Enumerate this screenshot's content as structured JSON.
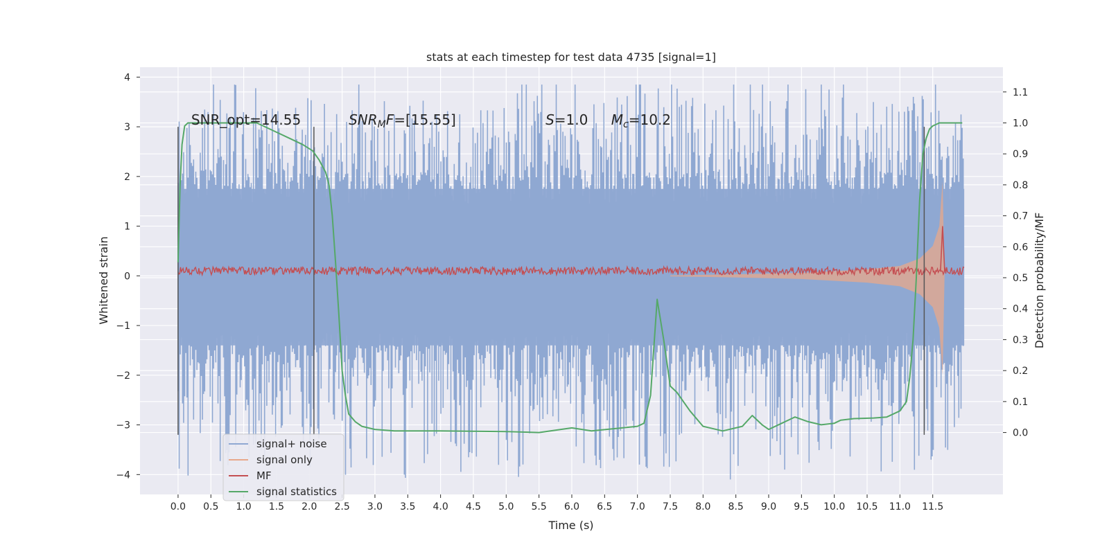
{
  "chart_data": {
    "type": "line",
    "title": "stats at each timestep for test data 4735 [signal=1]",
    "xlabel": "Time (s)",
    "ylabel_left": "Whitened strain",
    "ylabel_right": "Detection probability/MF",
    "xlim": [
      -0.58,
      12.57
    ],
    "ylim_left": [
      -4.4,
      4.2
    ],
    "ylim_right": [
      -0.2,
      1.18
    ],
    "x_ticks": [
      0.0,
      0.5,
      1.0,
      1.5,
      2.0,
      2.5,
      3.0,
      3.5,
      4.0,
      4.5,
      5.0,
      5.5,
      6.0,
      6.5,
      7.0,
      7.5,
      8.0,
      8.5,
      9.0,
      9.5,
      10.0,
      10.5,
      11.0,
      11.5
    ],
    "x_tick_labels": [
      "0.0",
      "0.5",
      "1.0",
      "1.5",
      "2.0",
      "2.5",
      "3.0",
      "3.5",
      "4.0",
      "4.5",
      "5.0",
      "5.5",
      "6.0",
      "6.5",
      "7.0",
      "7.5",
      "8.0",
      "8.5",
      "9.0",
      "9.5",
      "10.0",
      "10.5",
      "11.0",
      "11.5"
    ],
    "y_left_ticks": [
      -4,
      -3,
      -2,
      -1,
      0,
      1,
      2,
      3,
      4
    ],
    "y_left_tick_labels": [
      "−4",
      "−3",
      "−2",
      "−1",
      "0",
      "1",
      "2",
      "3",
      "4"
    ],
    "y_right_ticks": [
      0.0,
      0.1,
      0.2,
      0.3,
      0.4,
      0.5,
      0.6,
      0.7,
      0.8,
      0.9,
      1.0,
      1.1
    ],
    "y_right_tick_labels": [
      "0.0",
      "0.1",
      "0.2",
      "0.3",
      "0.4",
      "0.5",
      "0.6",
      "0.7",
      "0.8",
      "0.9",
      "1.0",
      "1.1"
    ],
    "grid": true,
    "legend_position": "lower-left",
    "annotations": [
      {
        "text": "SNR_opt=14.55",
        "x": 0.2,
        "y": 3.0,
        "math": false
      },
      {
        "text": "SNR_MF=[15.55]",
        "x": 2.6,
        "y": 3.0,
        "math": "snr_mf"
      },
      {
        "text": "S=1.0",
        "x": 5.6,
        "y": 3.0,
        "math": "s"
      },
      {
        "text": "M_c=10.2",
        "x": 6.6,
        "y": 3.0,
        "math": "mc"
      }
    ],
    "vertical_lines": [
      {
        "x": 0.0,
        "y_from": -3.2,
        "y_to": 3.0
      },
      {
        "x": 2.07,
        "y_from": -3.2,
        "y_to": 3.0
      },
      {
        "x": 11.37,
        "y_from": -3.2,
        "y_to": 3.0
      }
    ],
    "noise_envelope": {
      "x_start": 0.0,
      "x_end": 11.98,
      "body_top": 1.75,
      "body_bottom": -1.4,
      "spike_max": 3.85,
      "spike_min": -4.1
    },
    "signal_envelope": {
      "points": [
        [
          7.5,
          0.01
        ],
        [
          8.5,
          0.03
        ],
        [
          9.5,
          0.06
        ],
        [
          10.5,
          0.13
        ],
        [
          11.0,
          0.2
        ],
        [
          11.3,
          0.35
        ],
        [
          11.5,
          0.6
        ],
        [
          11.6,
          1.0
        ],
        [
          11.65,
          1.9
        ],
        [
          11.68,
          0.0
        ]
      ]
    },
    "mf_envelope": {
      "x_start": 0.0,
      "x_end": 11.98,
      "level": 0.1,
      "amplitude": 0.08,
      "peak_x": 11.65,
      "peak_value": 1.0
    },
    "series": [
      {
        "name": "signal+ noise",
        "color": "#8fa8d2"
      },
      {
        "name": "signal only",
        "color": "#e8a88a"
      },
      {
        "name": "MF",
        "color": "#c44e52"
      },
      {
        "name": "signal statistics",
        "color": "#55a868",
        "axis": "right",
        "x": [
          0.0,
          0.03,
          0.06,
          0.1,
          0.15,
          0.25,
          0.5,
          0.8,
          1.2,
          1.5,
          1.7,
          1.9,
          2.05,
          2.15,
          2.25,
          2.3,
          2.35,
          2.4,
          2.45,
          2.5,
          2.55,
          2.6,
          2.7,
          2.8,
          3.0,
          3.3,
          4.0,
          5.0,
          5.5,
          6.0,
          6.3,
          7.0,
          7.1,
          7.2,
          7.3,
          7.4,
          7.5,
          7.6,
          7.8,
          8.0,
          8.3,
          8.6,
          8.75,
          8.9,
          9.0,
          9.2,
          9.4,
          9.6,
          9.8,
          10.0,
          10.1,
          10.3,
          10.6,
          10.8,
          11.0,
          11.1,
          11.15,
          11.2,
          11.25,
          11.3,
          11.35,
          11.4,
          11.45,
          11.5,
          11.6,
          11.75,
          11.95
        ],
        "y": [
          0.55,
          0.8,
          0.93,
          0.99,
          1.0,
          1.0,
          1.0,
          1.0,
          1.0,
          0.97,
          0.95,
          0.93,
          0.91,
          0.88,
          0.84,
          0.8,
          0.7,
          0.55,
          0.38,
          0.2,
          0.12,
          0.06,
          0.035,
          0.02,
          0.01,
          0.005,
          0.005,
          0.003,
          0.0,
          0.015,
          0.005,
          0.02,
          0.03,
          0.12,
          0.43,
          0.3,
          0.15,
          0.13,
          0.07,
          0.02,
          0.005,
          0.02,
          0.055,
          0.025,
          0.01,
          0.03,
          0.05,
          0.035,
          0.025,
          0.03,
          0.04,
          0.045,
          0.047,
          0.05,
          0.07,
          0.1,
          0.18,
          0.3,
          0.5,
          0.75,
          0.9,
          0.95,
          0.98,
          0.99,
          1.0,
          1.0,
          1.0
        ]
      }
    ]
  }
}
